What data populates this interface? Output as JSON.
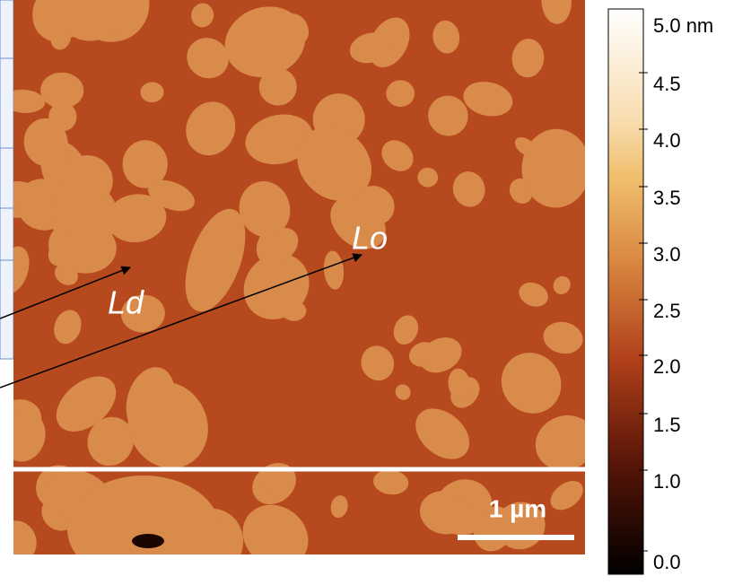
{
  "colorbar": {
    "labels": [
      "5.0 nm",
      "4.5",
      "4.0",
      "3.5",
      "3.0",
      "2.5",
      "2.0",
      "1.5",
      "1.0",
      "0.0"
    ]
  },
  "annotations": {
    "lo": "Lo",
    "ld": "Ld",
    "scale_bar": "1 µm"
  }
}
